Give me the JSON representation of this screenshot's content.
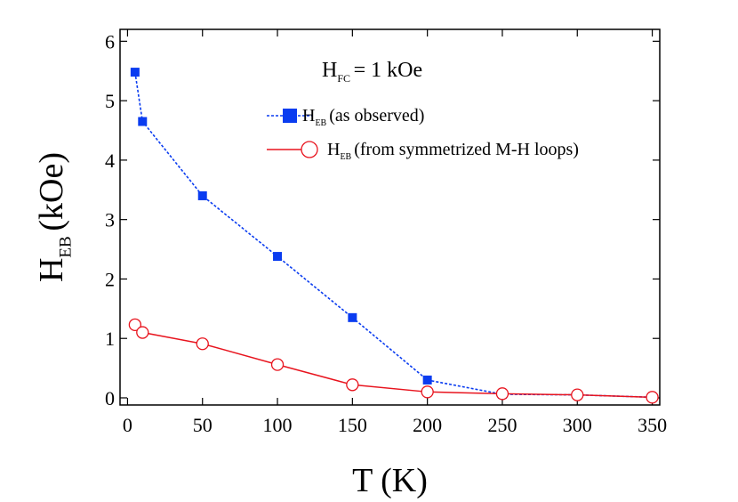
{
  "chart_data": {
    "type": "line",
    "annotation": {
      "symbol": "H",
      "subscript": "FC",
      "text": "= 1 kOe"
    },
    "x_label": "T (K)",
    "y_label": {
      "symbol": "H",
      "subscript": "EB",
      "text": "(kOe)"
    },
    "series": [
      {
        "name": {
          "symbol": "H",
          "subscript": "EB",
          "text": "(as observed)"
        },
        "color": "#0a3cf0",
        "marker": "square",
        "dash": "dotted",
        "x": [
          5,
          10,
          50,
          100,
          150,
          200,
          250,
          300,
          350
        ],
        "values": [
          5.48,
          4.65,
          3.4,
          2.38,
          1.35,
          0.3,
          0.06,
          0.05,
          0.01
        ]
      },
      {
        "name": {
          "symbol": "H",
          "subscript": "EB",
          "text": "(from symmetrized M-H loops)"
        },
        "color": "#e8141e",
        "marker": "open-circle",
        "dash": "solid",
        "x": [
          5,
          10,
          50,
          100,
          150,
          200,
          250,
          300,
          350
        ],
        "values": [
          1.23,
          1.1,
          0.91,
          0.56,
          0.22,
          0.1,
          0.07,
          0.05,
          0.01
        ]
      }
    ],
    "xlim": [
      -5,
      355
    ],
    "xticks": [
      0,
      50,
      100,
      150,
      200,
      250,
      300,
      350
    ],
    "ylim": [
      -0.12,
      6.2
    ],
    "yticks": [
      0,
      1,
      2,
      3,
      4,
      5,
      6
    ],
    "grid": false
  }
}
